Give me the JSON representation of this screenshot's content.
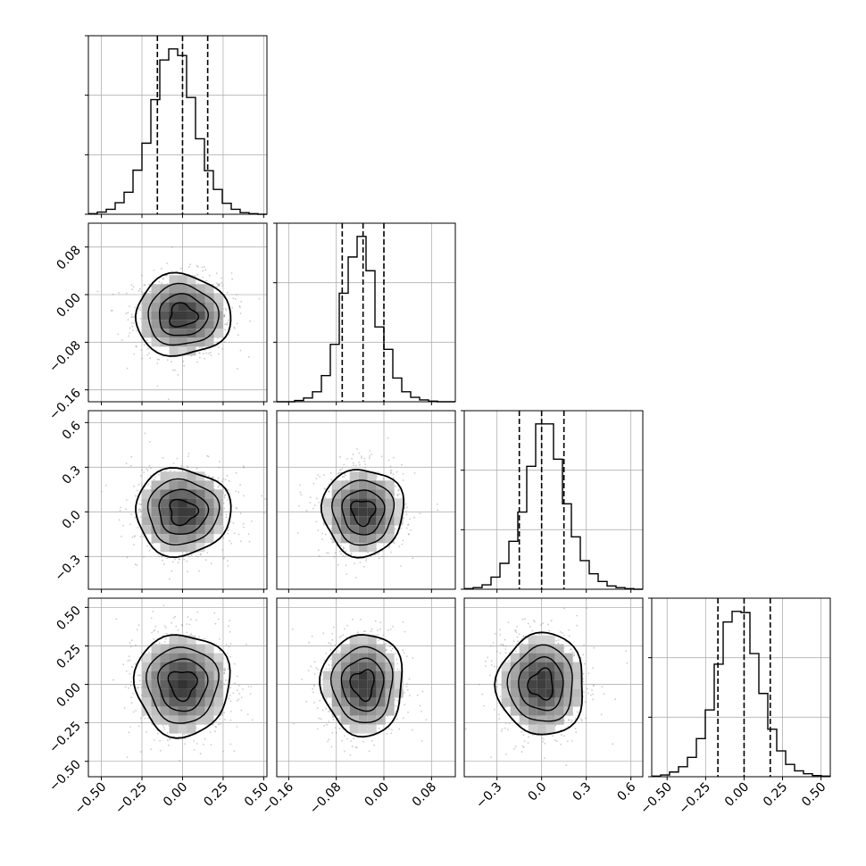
{
  "chart_data": {
    "type": "corner",
    "n_params": 4,
    "quantiles": [
      0.16,
      0.5,
      0.84
    ],
    "contour_levels_sigma": [
      0.5,
      1.0,
      1.5,
      2.0
    ],
    "grid": true,
    "params": [
      {
        "range": [
          -0.58,
          0.52
        ],
        "ticks": [
          -0.5,
          -0.25,
          0.0,
          0.25,
          0.5
        ],
        "tick_labels": [
          "−0.50",
          "−0.25",
          "0.00",
          "0.25",
          "0.50"
        ],
        "mean": 0.0,
        "sigma": 0.15,
        "quantile_values": [
          -0.155,
          0.0,
          0.155
        ],
        "hist_counts": [
          1,
          4,
          9,
          21,
          40,
          80,
          129,
          208,
          280,
          300,
          288,
          212,
          137,
          79,
          45,
          20,
          9,
          3,
          1,
          0
        ]
      },
      {
        "range": [
          -0.18,
          0.12
        ],
        "ticks": [
          -0.16,
          -0.08,
          0.0,
          0.08
        ],
        "tick_labels": [
          "−0.16",
          "−0.08",
          "0.00",
          "0.08"
        ],
        "mean": -0.035,
        "sigma": 0.035,
        "quantile_values": [
          -0.07,
          -0.035,
          0.0
        ],
        "hist_counts": [
          0,
          0,
          2,
          6,
          16,
          42,
          92,
          174,
          232,
          265,
          210,
          120,
          84,
          38,
          16,
          7,
          3,
          1,
          0,
          0
        ]
      },
      {
        "range": [
          -0.52,
          0.68
        ],
        "ticks": [
          -0.3,
          0.0,
          0.3,
          0.6
        ],
        "tick_labels": [
          "−0.3",
          "0.0",
          "0.3",
          "0.6"
        ],
        "mean": 0.0,
        "sigma": 0.15,
        "quantile_values": [
          -0.15,
          0.0,
          0.15
        ],
        "hist_counts": [
          1,
          3,
          8,
          22,
          47,
          87,
          140,
          223,
          300,
          300,
          236,
          155,
          95,
          52,
          28,
          14,
          6,
          3,
          1,
          0
        ]
      },
      {
        "range": [
          -0.6,
          0.56
        ],
        "ticks": [
          -0.5,
          -0.25,
          0.0,
          0.25,
          0.5
        ],
        "tick_labels": [
          "−0.50",
          "−0.25",
          "0.00",
          "0.25",
          "0.50"
        ],
        "mean": 0.0,
        "sigma": 0.17,
        "quantile_values": [
          -0.17,
          0.0,
          0.17
        ],
        "hist_counts": [
          1,
          3,
          8,
          17,
          33,
          65,
          114,
          192,
          264,
          282,
          280,
          210,
          142,
          81,
          44,
          21,
          10,
          5,
          2,
          1
        ]
      }
    ],
    "row_tick_params": [
      {
        "ticks": [
          -0.16,
          -0.08,
          0.0,
          0.08
        ],
        "tick_labels": [
          "−0.16",
          "−0.08",
          "0.00",
          "0.08"
        ]
      },
      {
        "ticks": [
          -0.3,
          0.0,
          0.3,
          0.6
        ],
        "tick_labels": [
          "−0.3",
          "0.0",
          "0.3",
          "0.6"
        ]
      },
      {
        "ticks": [
          -0.5,
          -0.25,
          0.0,
          0.25,
          0.5
        ],
        "tick_labels": [
          "−0.50",
          "−0.25",
          "0.00",
          "0.25",
          "0.50"
        ]
      }
    ],
    "colors": {
      "line": "#000000",
      "grid": "#b0b0b0",
      "points": "#8c8c8c",
      "density_low": "#ffffff",
      "density_high": "#2a2a2a"
    }
  }
}
